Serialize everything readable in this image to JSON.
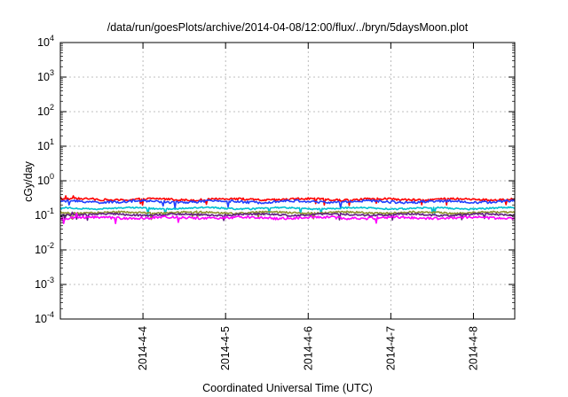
{
  "chart_data": {
    "type": "line",
    "title": "/data/run/goesPlots/archive/2014-04-08/12:00/flux/../bryn/5daysMoon.plot",
    "xlabel": "Coordinated Universal Time (UTC)",
    "ylabel": "cGy/day",
    "yscale": "log",
    "ylim": [
      0.0001,
      10000
    ],
    "xlim": [
      "2014-04-03 00:00",
      "2014-04-08 12:00"
    ],
    "grid": true,
    "legend": "none",
    "y_ticks": [
      {
        "value": 0.0001,
        "base": "10",
        "exp": "-4"
      },
      {
        "value": 0.001,
        "base": "10",
        "exp": "-3"
      },
      {
        "value": 0.01,
        "base": "10",
        "exp": "-2"
      },
      {
        "value": 0.1,
        "base": "10",
        "exp": "-1"
      },
      {
        "value": 1,
        "base": "10",
        "exp": "0"
      },
      {
        "value": 10,
        "base": "10",
        "exp": "1"
      },
      {
        "value": 100,
        "base": "10",
        "exp": "2"
      },
      {
        "value": 1000,
        "base": "10",
        "exp": "3"
      },
      {
        "value": 10000,
        "base": "10",
        "exp": "4"
      }
    ],
    "x_ticks": [
      {
        "value": "2014-04-04 00:00",
        "label": "2014-4-4"
      },
      {
        "value": "2014-04-05 00:00",
        "label": "2014-4-5"
      },
      {
        "value": "2014-04-06 00:00",
        "label": "2014-4-6"
      },
      {
        "value": "2014-04-07 00:00",
        "label": "2014-4-7"
      },
      {
        "value": "2014-04-08 00:00",
        "label": "2014-4-8"
      }
    ],
    "series": [
      {
        "color": "#ff0000",
        "level": 0.29,
        "jitter": 0.07
      },
      {
        "color": "#2040ff",
        "level": 0.25,
        "jitter": 0.08
      },
      {
        "color": "#00c0d0",
        "level": 0.16,
        "jitter": 0.05
      },
      {
        "color": "#909030",
        "level": 0.12,
        "jitter": 0.06
      },
      {
        "color": "#602080",
        "level": 0.105,
        "jitter": 0.06
      },
      {
        "color": "#ff00ff",
        "level": 0.085,
        "jitter": 0.08
      }
    ]
  }
}
